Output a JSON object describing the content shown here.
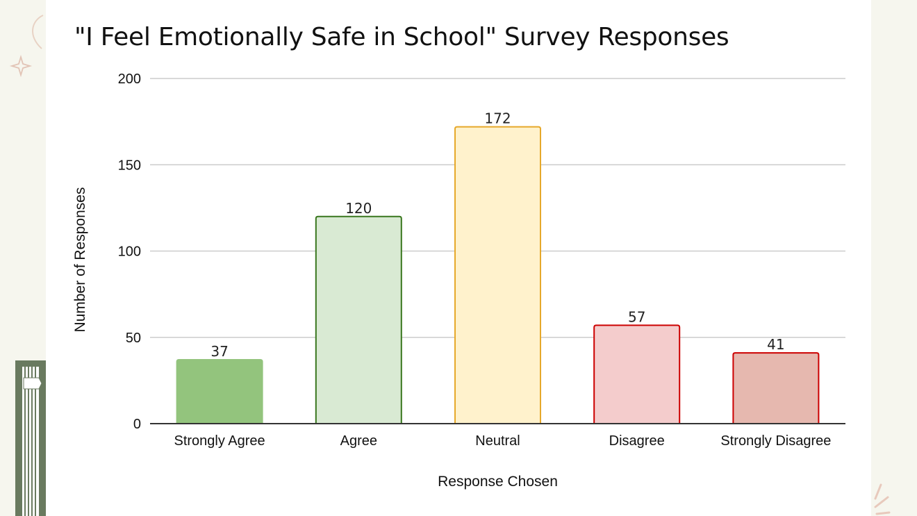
{
  "chart_data": {
    "type": "bar",
    "title": "\"I Feel Emotionally Safe in School\" Survey Responses",
    "xlabel": "Response Chosen",
    "ylabel": "Number of Responses",
    "categories": [
      "Strongly Agree",
      "Agree",
      "Neutral",
      "Disagree",
      "Strongly Disagree"
    ],
    "values": [
      37,
      120,
      172,
      57,
      41
    ],
    "ylim": [
      0,
      200
    ],
    "yticks": [
      0,
      50,
      100,
      150,
      200
    ],
    "grid": true,
    "bar_colors": [
      {
        "fill": "#93c47d",
        "stroke": "#93c47d"
      },
      {
        "fill": "#d9ead3",
        "stroke": "#38761d"
      },
      {
        "fill": "#fff2cc",
        "stroke": "#e6a82a"
      },
      {
        "fill": "#f4cccc",
        "stroke": "#cc0000"
      },
      {
        "fill": "#e6b8af",
        "stroke": "#cc0000"
      }
    ],
    "gridline_color": "#cccccc",
    "axis_color": "#333333"
  }
}
